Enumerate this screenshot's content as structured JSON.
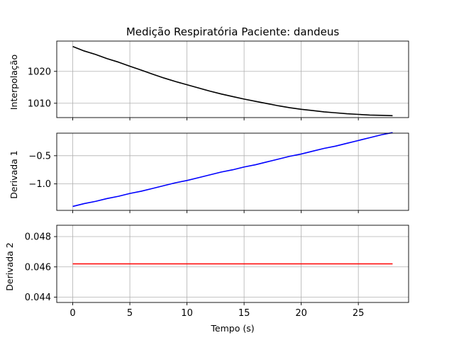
{
  "chart_data": {
    "type": "line",
    "title": "Medição Respiratória Paciente: dandeus",
    "xlabel": "Tempo (s)",
    "x": [
      0,
      1,
      2,
      3,
      4,
      5,
      6,
      7,
      8,
      9,
      10,
      11,
      12,
      13,
      14,
      15,
      16,
      17,
      18,
      19,
      20,
      21,
      22,
      23,
      24,
      25,
      26,
      27,
      28
    ],
    "x_ticks": [
      0,
      5,
      10,
      15,
      20,
      25
    ],
    "xlim": [
      -1.4,
      29.4
    ],
    "grid": true,
    "panels": [
      {
        "ylabel": "Interpolação",
        "color": "#000000",
        "ylim": [
          1005.5,
          1029.5
        ],
        "y_ticks": [
          1010,
          1020
        ],
        "y_tick_labels": [
          "1010",
          "1020"
        ],
        "values": [
          1027.8,
          1026.4,
          1025.3,
          1024.0,
          1022.9,
          1021.6,
          1020.4,
          1019.1,
          1017.9,
          1016.8,
          1015.8,
          1014.8,
          1013.8,
          1012.9,
          1012.1,
          1011.3,
          1010.6,
          1009.9,
          1009.2,
          1008.6,
          1008.1,
          1007.7,
          1007.3,
          1007.0,
          1006.7,
          1006.5,
          1006.3,
          1006.2,
          1006.1
        ]
      },
      {
        "ylabel": "Derivada 1",
        "color": "#0000ff",
        "ylim": [
          -1.47,
          -0.1
        ],
        "y_ticks": [
          -1.0,
          -0.5
        ],
        "y_tick_labels": [
          "−1.0",
          "−0.5"
        ],
        "values": [
          -1.4,
          -1.35,
          -1.31,
          -1.26,
          -1.22,
          -1.17,
          -1.13,
          -1.08,
          -1.03,
          -0.98,
          -0.94,
          -0.89,
          -0.84,
          -0.79,
          -0.75,
          -0.7,
          -0.66,
          -0.61,
          -0.56,
          -0.51,
          -0.47,
          -0.42,
          -0.37,
          -0.33,
          -0.28,
          -0.23,
          -0.18,
          -0.13,
          -0.09
        ]
      },
      {
        "ylabel": "Derivada 2",
        "color": "#ff0000",
        "ylim": [
          0.04365,
          0.04875
        ],
        "y_ticks": [
          0.044,
          0.046,
          0.048
        ],
        "y_tick_labels": [
          "0.044",
          "0.046",
          "0.048"
        ],
        "values": [
          0.0462,
          0.0462,
          0.0462,
          0.0462,
          0.0462,
          0.0462,
          0.0462,
          0.0462,
          0.0462,
          0.0462,
          0.0462,
          0.0462,
          0.0462,
          0.0462,
          0.0462,
          0.0462,
          0.0462,
          0.0462,
          0.0462,
          0.0462,
          0.0462,
          0.0462,
          0.0462,
          0.0462,
          0.0462,
          0.0462,
          0.0462,
          0.0462,
          0.0462
        ]
      }
    ]
  }
}
